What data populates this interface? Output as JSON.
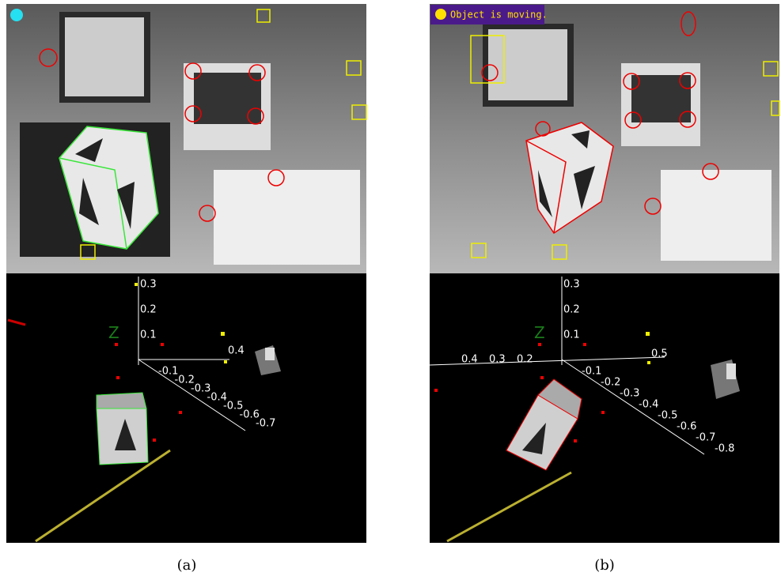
{
  "panels": [
    {
      "caption": "(a)",
      "vertical_ticks": [
        "0.3",
        "0.2",
        "0.1"
      ],
      "diagonal_ticks": [
        "-0.1",
        "-0.2",
        "-0.3",
        "-0.4",
        "-0.5",
        "-0.6",
        "-0.7"
      ],
      "side_tick": "0.4"
    },
    {
      "caption": "(b)",
      "status": "Object is moving.",
      "vertical_ticks": [
        "0.3",
        "0.2",
        "0.1"
      ],
      "horizontal_ticks": [
        "0.4",
        "0.3",
        "0.2"
      ],
      "diagonal_ticks": [
        "-0.1",
        "-0.2",
        "-0.3",
        "-0.4",
        "-0.5",
        "-0.6",
        "-0.7",
        "-0.8"
      ],
      "side_tick": "0.5"
    }
  ]
}
